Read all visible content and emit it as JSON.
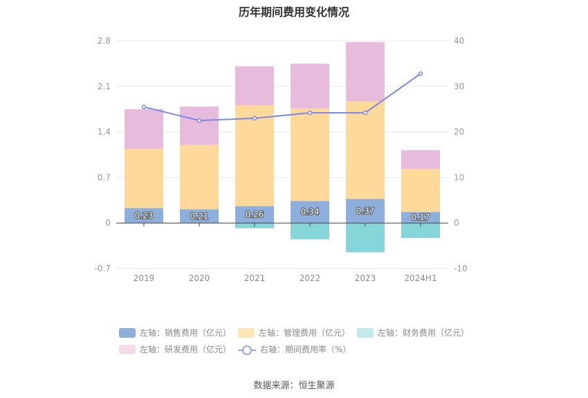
{
  "title": "历年期间费用变化情况",
  "source": "数据来源：恒生聚源",
  "chart_data": {
    "type": "bar",
    "stacked": true,
    "categories": [
      "2019",
      "2020",
      "2021",
      "2022",
      "2023",
      "2024H1"
    ],
    "y_left": {
      "ticks": [
        "2.8",
        "2.1",
        "1.4",
        "0.7",
        "0",
        "-0.7"
      ],
      "ylim": [
        -0.7,
        2.8
      ]
    },
    "y_right": {
      "ticks": [
        "40",
        "30",
        "20",
        "10",
        "0",
        "-10"
      ],
      "ylim": [
        -10,
        40
      ]
    },
    "series": [
      {
        "name": "左轴：销售费用（亿元）",
        "axis": "left",
        "kind": "bar",
        "color": "#8eaedb",
        "values": [
          0.23,
          0.21,
          0.26,
          0.34,
          0.37,
          0.17
        ],
        "labels": [
          "0.23",
          "0.21",
          "0.26",
          "0.34",
          "0.37",
          "0.17"
        ]
      },
      {
        "name": "左轴：管理费用（亿元）",
        "axis": "left",
        "kind": "bar",
        "color": "#fed99a",
        "values": [
          0.91,
          0.99,
          1.55,
          1.42,
          1.5,
          0.66
        ]
      },
      {
        "name": "左轴：财务费用（亿元）",
        "axis": "left",
        "kind": "bar",
        "color": "#86d5d8",
        "values": [
          0.0,
          0.0,
          -0.08,
          -0.25,
          -0.45,
          -0.23
        ]
      },
      {
        "name": "左轴：研发费用（亿元）",
        "axis": "left",
        "kind": "bar",
        "color": "#e6bbdc",
        "values": [
          0.61,
          0.59,
          0.6,
          0.69,
          0.91,
          0.29
        ]
      },
      {
        "name": "右轴：期间费用率（%）",
        "axis": "right",
        "kind": "line",
        "color": "#7b87e8",
        "values": [
          25.5,
          22.5,
          23.0,
          24.2,
          24.2,
          32.8
        ]
      }
    ],
    "grid": true,
    "legend_position": "bottom"
  }
}
